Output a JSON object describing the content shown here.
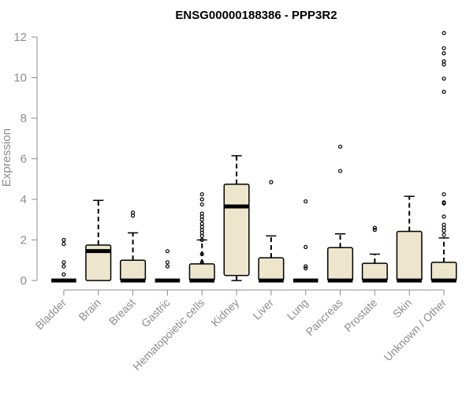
{
  "chart_data": {
    "type": "boxplot",
    "title": "ENSG00000188386 - PPP3R2",
    "xlabel": "",
    "ylabel": "Expression",
    "ylim": [
      0,
      12.3
    ],
    "yticks": [
      0,
      2,
      4,
      6,
      8,
      10,
      12
    ],
    "grid": false,
    "legend": "none",
    "box_fill": "#ede6cd",
    "line_color": "#000000",
    "axis_color": "#8c8c8c",
    "categories": [
      "Bladder",
      "Brain",
      "Breast",
      "Gastric",
      "Hematopoietic cells",
      "Kidney",
      "Liver",
      "Lung",
      "Pancreas",
      "Prostate",
      "Skin",
      "Unknown / Other"
    ],
    "boxes": [
      {
        "category": "Bladder",
        "whisker_low": 0,
        "q1": 0,
        "median": 0,
        "q3": 0,
        "whisker_high": 0,
        "outliers": [
          0.3,
          0.7,
          0.9,
          1.8,
          2.0
        ]
      },
      {
        "category": "Brain",
        "whisker_low": 0,
        "q1": 0,
        "median": 1.45,
        "q3": 1.75,
        "whisker_high": 3.95,
        "outliers": []
      },
      {
        "category": "Breast",
        "whisker_low": 0,
        "q1": 0,
        "median": 0,
        "q3": 1.0,
        "whisker_high": 2.35,
        "outliers": [
          3.2,
          3.35
        ]
      },
      {
        "category": "Gastric",
        "whisker_low": 0,
        "q1": 0,
        "median": 0,
        "q3": 0,
        "whisker_high": 0,
        "outliers": [
          0.7,
          0.9,
          1.45
        ]
      },
      {
        "category": "Hematopoietic cells",
        "whisker_low": 0,
        "q1": 0,
        "median": 0,
        "q3": 0.82,
        "whisker_high": 2.0,
        "outliers": [
          0.9,
          1.3,
          2.0,
          2.2,
          2.35,
          2.5,
          2.65,
          2.8,
          3.0,
          3.15,
          3.3,
          3.75,
          4.0,
          4.25
        ]
      },
      {
        "category": "Kidney",
        "whisker_low": 0,
        "q1": 0.25,
        "median": 3.65,
        "q3": 4.75,
        "whisker_high": 6.15,
        "outliers": []
      },
      {
        "category": "Liver",
        "whisker_low": 0,
        "q1": 0,
        "median": 0,
        "q3": 1.12,
        "whisker_high": 2.2,
        "outliers": [
          4.85
        ]
      },
      {
        "category": "Lung",
        "whisker_low": 0,
        "q1": 0,
        "median": 0,
        "q3": 0,
        "whisker_high": 0,
        "outliers": [
          0.6,
          0.7,
          1.65,
          3.9
        ]
      },
      {
        "category": "Pancreas",
        "whisker_low": 0,
        "q1": 0,
        "median": 0,
        "q3": 1.62,
        "whisker_high": 2.3,
        "outliers": [
          5.4,
          6.6
        ]
      },
      {
        "category": "Prostate",
        "whisker_low": 0,
        "q1": 0,
        "median": 0,
        "q3": 0.85,
        "whisker_high": 1.3,
        "outliers": [
          2.5,
          2.6
        ]
      },
      {
        "category": "Skin",
        "whisker_low": 0,
        "q1": 0,
        "median": 0,
        "q3": 2.42,
        "whisker_high": 4.15,
        "outliers": []
      },
      {
        "category": "Unknown / Other",
        "whisker_low": 0,
        "q1": 0,
        "median": 0,
        "q3": 0.9,
        "whisker_high": 2.1,
        "outliers": [
          2.25,
          2.45,
          2.6,
          2.75,
          3.15,
          3.8,
          3.85,
          4.25,
          9.3,
          9.95,
          10.65,
          10.8,
          11.2,
          11.45,
          12.2
        ]
      }
    ]
  }
}
